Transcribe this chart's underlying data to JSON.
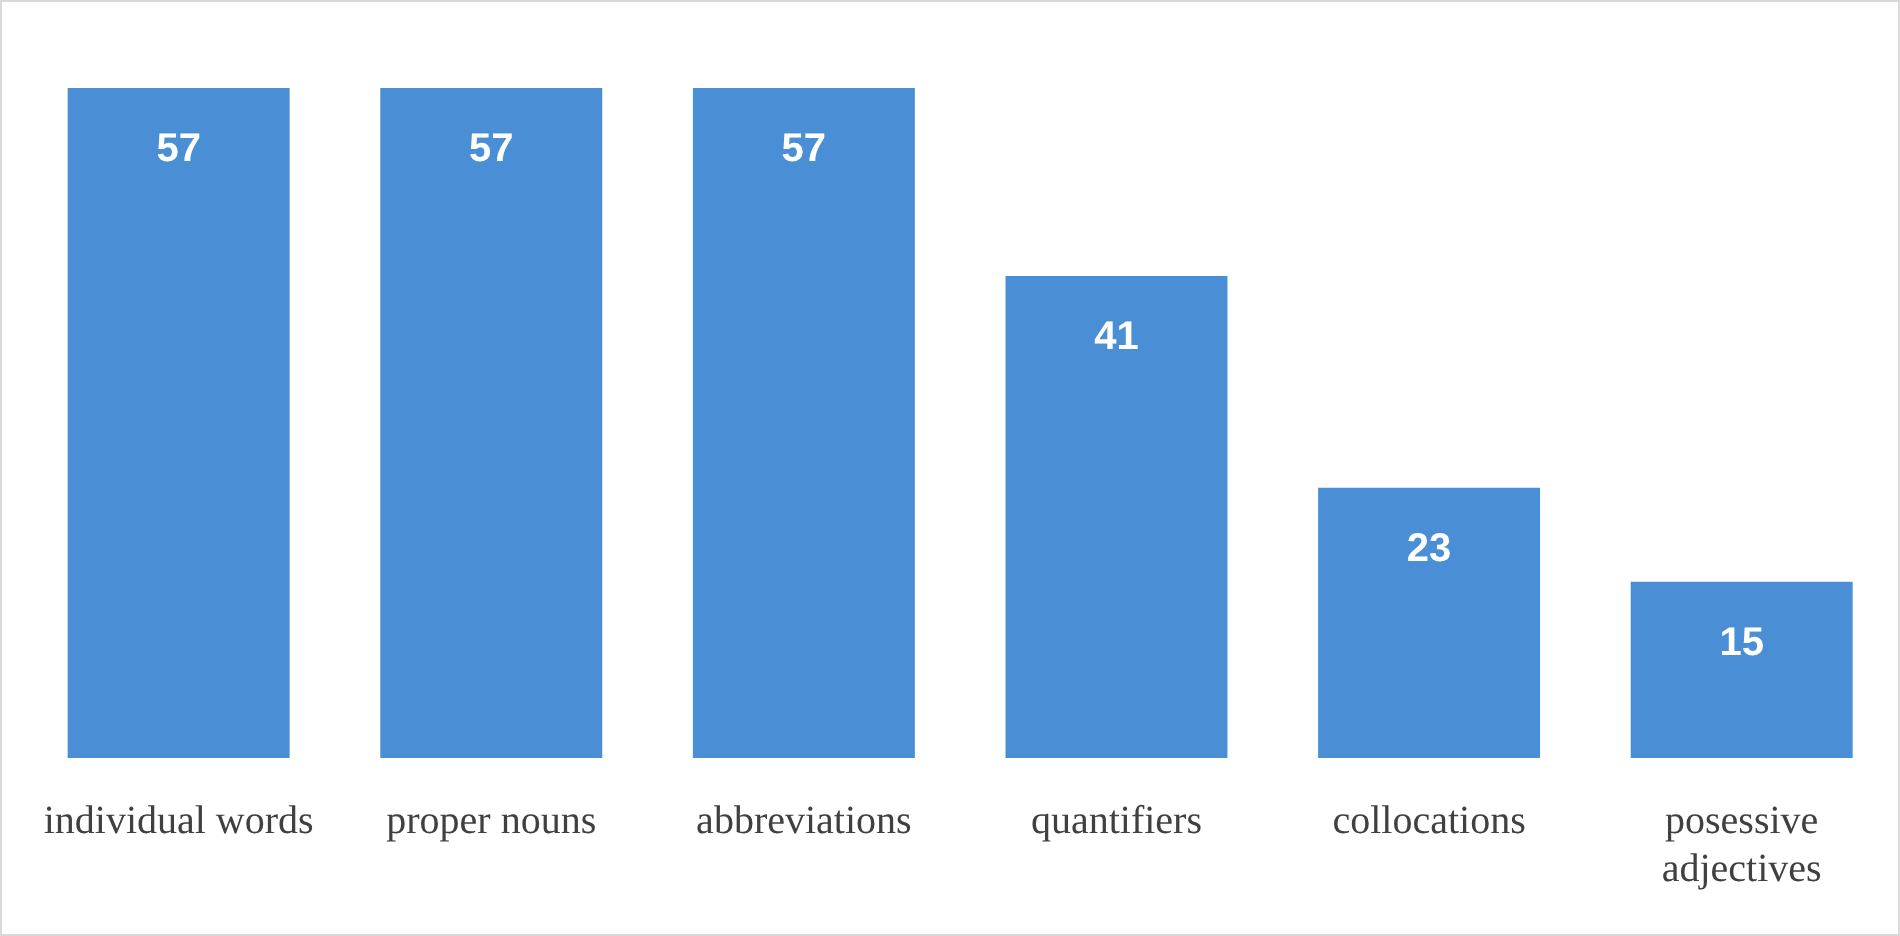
{
  "chart_data": {
    "type": "bar",
    "categories": [
      "individual words",
      "proper nouns",
      "abbreviations",
      "quantifiers",
      "collocations",
      "posessive adjectives"
    ],
    "values": [
      57,
      57,
      57,
      41,
      23,
      15
    ],
    "color": "#4a8fd6",
    "data_labels": true,
    "grid": false,
    "legend": false
  }
}
